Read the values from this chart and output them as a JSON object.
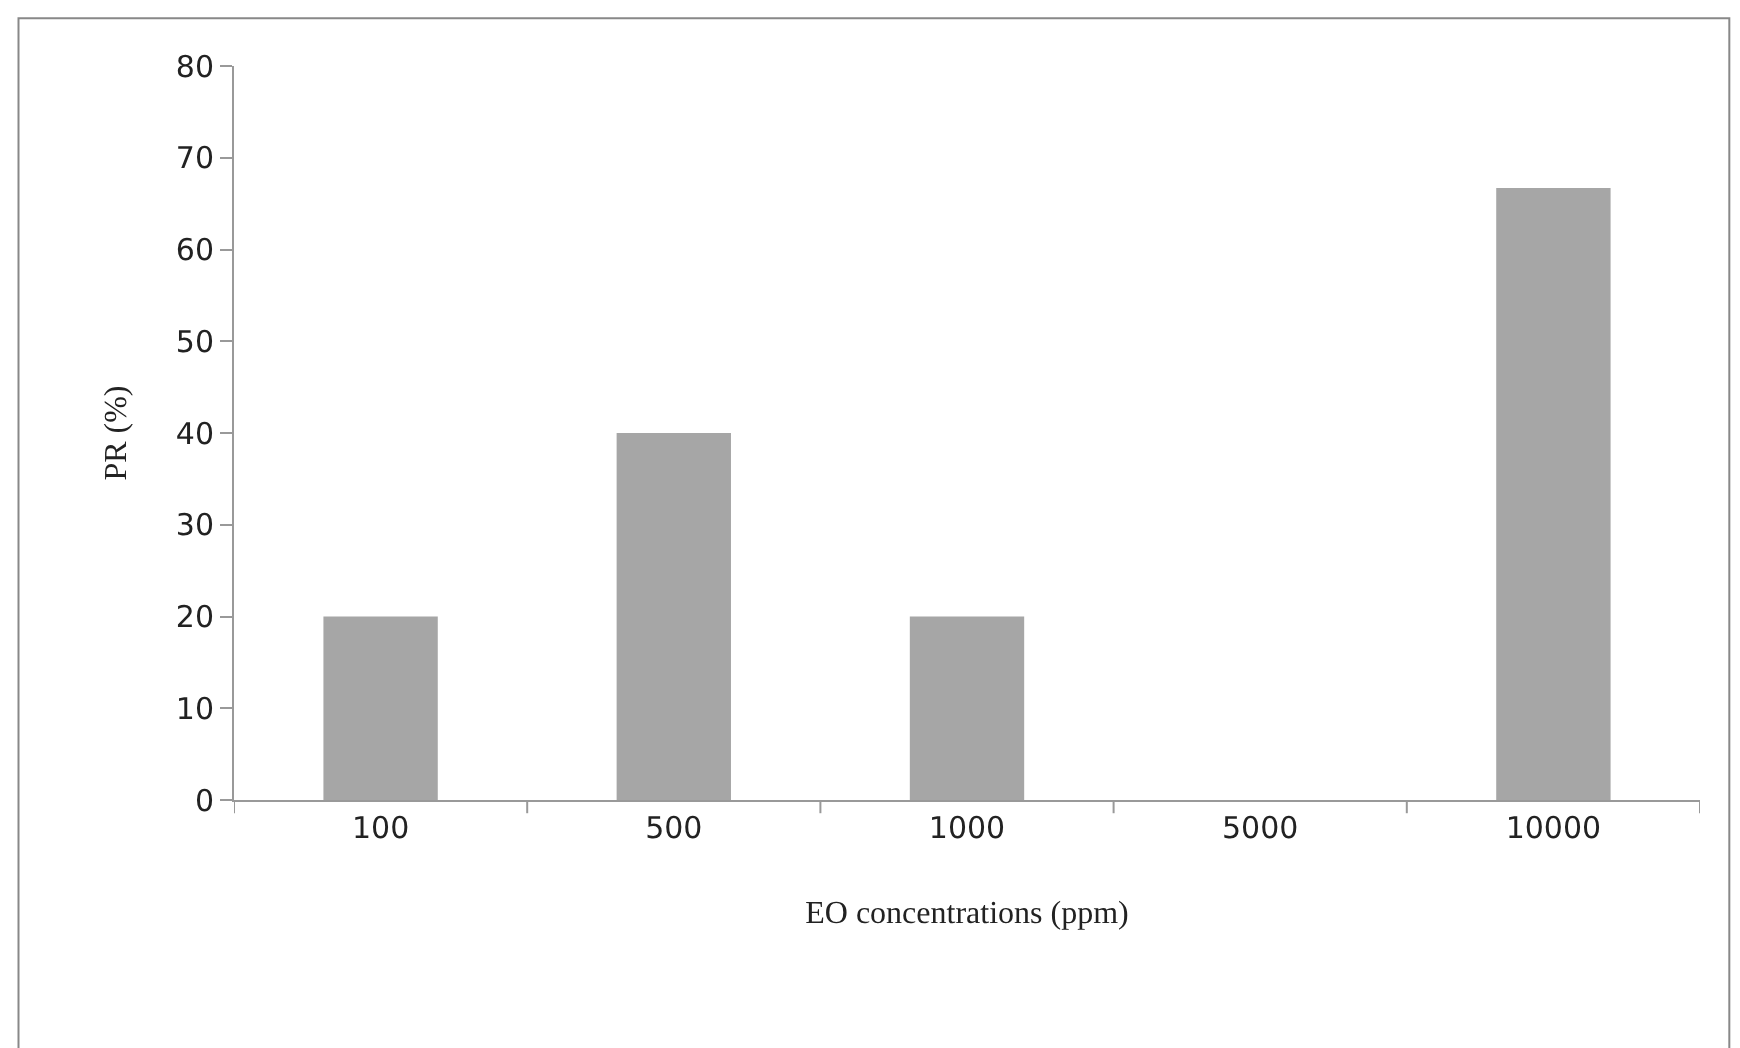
{
  "chart_data": {
    "type": "bar",
    "xlabel": "EO concentrations (ppm)",
    "ylabel": "PR (%)",
    "categories": [
      "100",
      "500",
      "1000",
      "5000",
      "10000"
    ],
    "values": [
      20,
      40,
      20,
      0,
      66.7
    ],
    "color": "#a6a6a6",
    "ylim": [
      0,
      80
    ],
    "yticks": [
      0,
      10,
      20,
      30,
      40,
      50,
      60,
      70,
      80
    ]
  }
}
